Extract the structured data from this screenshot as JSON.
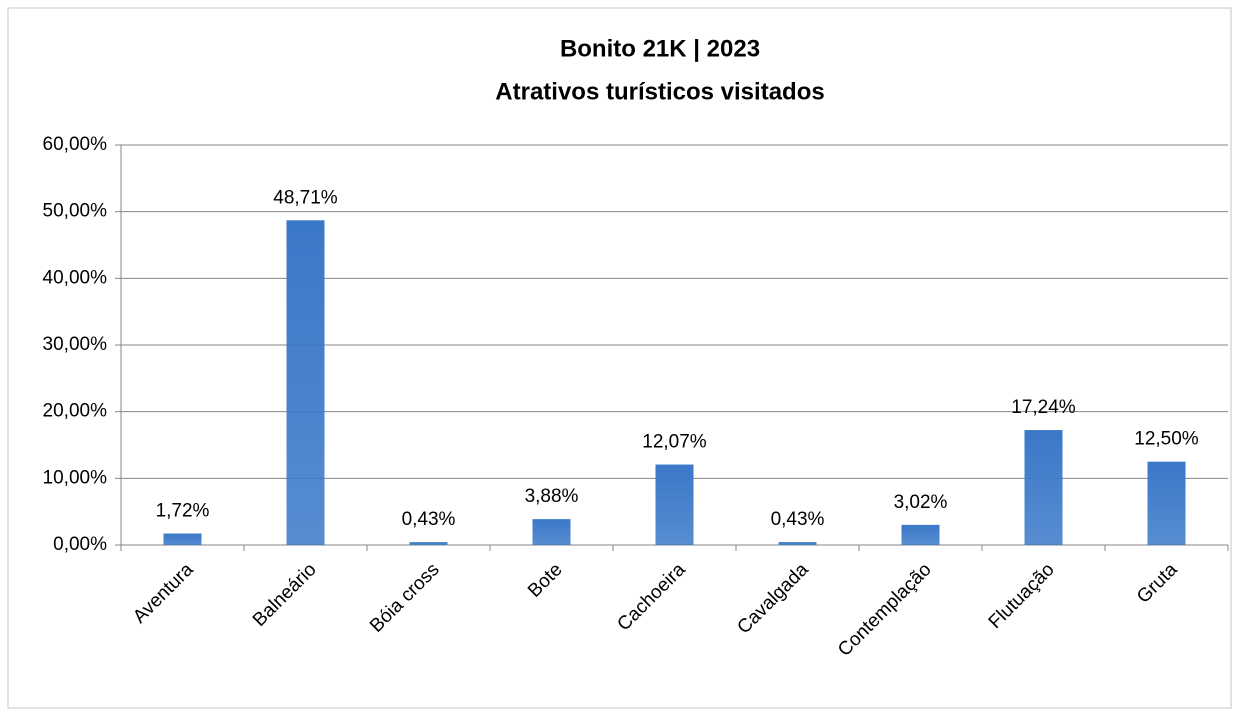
{
  "chart_data": {
    "type": "bar",
    "title": [
      "Bonito 21K | 2023",
      "Atrativos turísticos visitados"
    ],
    "categories": [
      "Aventura",
      "Balneário",
      "Bóia cross",
      "Bote",
      "Cachoeira",
      "Cavalgada",
      "Contemplação",
      "Flutuação",
      "Gruta"
    ],
    "values": [
      1.72,
      48.71,
      0.43,
      3.88,
      12.07,
      0.43,
      3.02,
      17.24,
      12.5
    ],
    "value_labels": [
      "1,72%",
      "48,71%",
      "0,43%",
      "3,88%",
      "12,07%",
      "0,43%",
      "3,02%",
      "17,24%",
      "12,50%"
    ],
    "color": "#3a78c8",
    "ylim": [
      0,
      60
    ],
    "yticks": [
      {
        "value": 0,
        "label": "0,00%"
      },
      {
        "value": 10,
        "label": "10,00%"
      },
      {
        "value": 20,
        "label": "20,00%"
      },
      {
        "value": 30,
        "label": "30,00%"
      },
      {
        "value": 40,
        "label": "40,00%"
      },
      {
        "value": 50,
        "label": "50,00%"
      },
      {
        "value": 60,
        "label": "60,00%"
      }
    ],
    "grid": true
  }
}
